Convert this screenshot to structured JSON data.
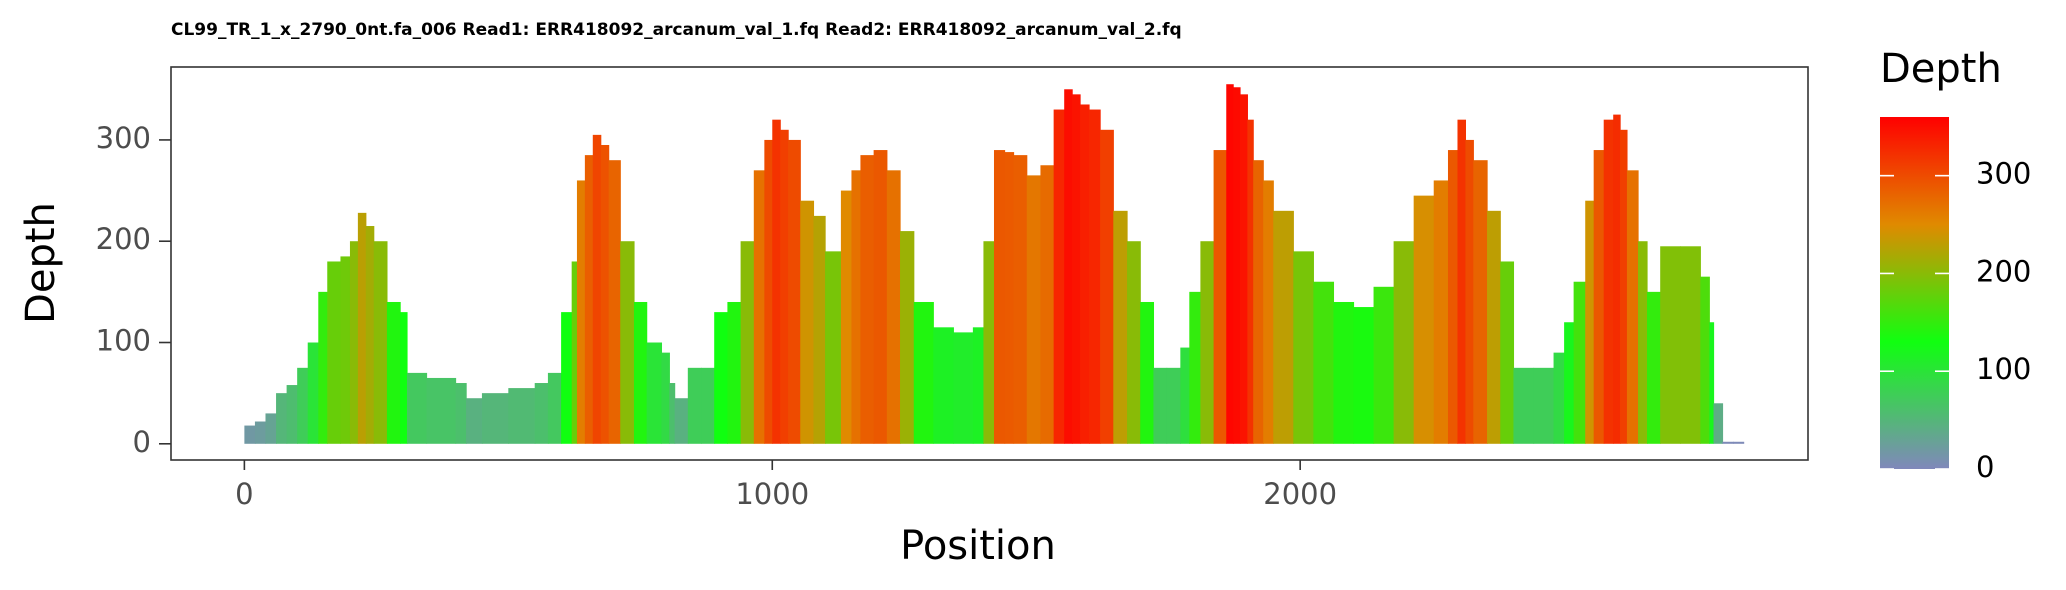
{
  "chart_data": {
    "type": "bar",
    "title": "CL99_TR_1_x_2790_0nt.fa_006 Read1: ERR418092_arcanum_val_1.fq Read2: ERR418092_arcanum_val_2.fq",
    "xlabel": "Position",
    "ylabel": "Depth",
    "x": [
      0,
      20,
      40,
      60,
      80,
      100,
      120,
      140,
      157,
      182,
      200,
      215,
      230,
      245,
      270,
      295,
      308,
      345,
      400,
      420,
      450,
      500,
      550,
      575,
      600,
      620,
      630,
      645,
      660,
      675,
      690,
      712,
      738,
      762,
      790,
      805,
      815,
      840,
      865,
      890,
      915,
      940,
      965,
      985,
      1000,
      1015,
      1030,
      1053,
      1078,
      1100,
      1130,
      1150,
      1167,
      1192,
      1217,
      1242,
      1268,
      1305,
      1343,
      1380,
      1400,
      1420,
      1440,
      1457,
      1482,
      1508,
      1533,
      1553,
      1568,
      1583,
      1600,
      1621,
      1646,
      1672,
      1697,
      1722,
      1747,
      1773,
      1790,
      1811,
      1836,
      1860,
      1873,
      1886,
      1900,
      1911,
      1930,
      1949,
      1987,
      2025,
      2063,
      2101,
      2139,
      2177,
      2215,
      2253,
      2280,
      2298,
      2313,
      2328,
      2354,
      2379,
      2404,
      2442,
      2480,
      2500,
      2518,
      2540,
      2556,
      2575,
      2593,
      2606,
      2619,
      2640,
      2657,
      2682,
      2720,
      2758,
      2775,
      2783,
      2800,
      2820
    ],
    "values": [
      18,
      22,
      30,
      50,
      58,
      75,
      100,
      150,
      180,
      185,
      200,
      228,
      215,
      200,
      140,
      130,
      70,
      65,
      60,
      45,
      50,
      55,
      60,
      70,
      130,
      180,
      260,
      285,
      305,
      295,
      280,
      200,
      140,
      100,
      90,
      60,
      45,
      75,
      75,
      130,
      140,
      200,
      270,
      300,
      320,
      310,
      300,
      240,
      225,
      190,
      250,
      270,
      285,
      290,
      270,
      210,
      140,
      115,
      110,
      115,
      200,
      290,
      288,
      285,
      265,
      275,
      330,
      350,
      345,
      335,
      330,
      310,
      230,
      200,
      140,
      75,
      75,
      95,
      150,
      200,
      290,
      355,
      352,
      345,
      320,
      280,
      260,
      230,
      190,
      160,
      140,
      135,
      155,
      200,
      245,
      260,
      290,
      320,
      300,
      280,
      230,
      180,
      75,
      75,
      90,
      120,
      160,
      240,
      290,
      320,
      325,
      310,
      270,
      200,
      150,
      195,
      195,
      165,
      120,
      40,
      2,
      2
    ],
    "xlim": [
      -139,
      2962
    ],
    "ylim": [
      -16,
      372
    ],
    "xticks": [
      0,
      1000,
      2000
    ],
    "yticks": [
      0,
      100,
      200,
      300
    ],
    "fill_scale": {
      "title": "Depth",
      "limits": [
        0,
        360
      ],
      "ticks": [
        0,
        100,
        200,
        300
      ],
      "stops": [
        {
          "value": 0,
          "color": "#8088bb"
        },
        {
          "value": 130,
          "color": "#10ff10"
        },
        {
          "value": 250,
          "color": "#e08a00"
        },
        {
          "value": 360,
          "color": "#ff0000"
        }
      ]
    }
  }
}
